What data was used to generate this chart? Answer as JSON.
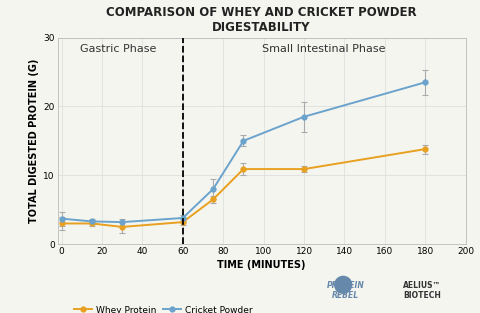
{
  "title_line1": "COMPARISON OF WHEY AND CRICKET POWDER",
  "title_line2": "DIGESTABILITY",
  "xlabel": "TIME (MINUTES)",
  "ylabel": "TOTAL DIGESTED PROTEIN (G)",
  "xlim": [
    -2,
    200
  ],
  "ylim": [
    0,
    30
  ],
  "xticks": [
    0,
    20,
    40,
    60,
    80,
    100,
    120,
    140,
    160,
    180,
    200
  ],
  "yticks": [
    0,
    10,
    20,
    30
  ],
  "dashed_line_x": 60,
  "gastric_label": "Gastric Phase",
  "intestinal_label": "Small Intestinal Phase",
  "whey_color": "#E8A020",
  "cricket_color": "#6BA3CC",
  "error_color": "#AAAAAA",
  "background_color": "#F5F5F0",
  "grid_color": "#DDDDDD",
  "whey_x": [
    0,
    15,
    30,
    60,
    75,
    90,
    120,
    180
  ],
  "whey_y": [
    3.0,
    3.0,
    2.5,
    3.2,
    6.5,
    10.9,
    10.9,
    13.8
  ],
  "whey_yerr": [
    0.9,
    0.35,
    0.9,
    0.4,
    0.55,
    0.85,
    0.45,
    0.65
  ],
  "cricket_x": [
    0,
    15,
    30,
    60,
    75,
    90,
    120,
    180
  ],
  "cricket_y": [
    3.7,
    3.3,
    3.2,
    3.8,
    8.0,
    15.0,
    18.5,
    23.5
  ],
  "cricket_yerr": [
    1.0,
    0.4,
    0.5,
    0.5,
    1.4,
    0.8,
    2.2,
    1.8
  ],
  "legend_whey": "Whey Protein",
  "legend_cricket": "Cricket Powder",
  "title_fontsize": 8.5,
  "axis_label_fontsize": 7,
  "tick_fontsize": 6.5,
  "phase_label_fontsize": 8,
  "legend_fontsize": 6.5
}
